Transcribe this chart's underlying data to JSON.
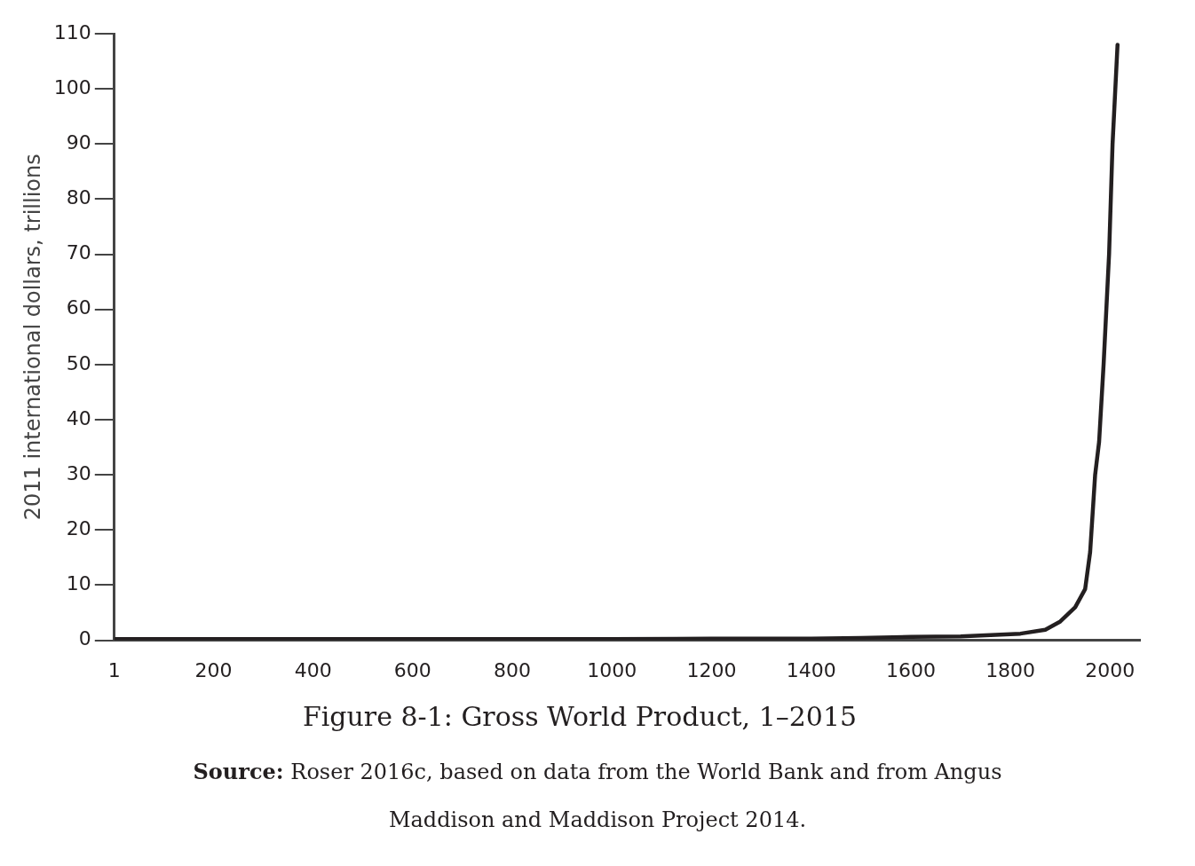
{
  "chart_data": {
    "type": "line",
    "title": "Figure 8-1: Gross World Product, 1–2015",
    "ylabel": "2011 international dollars, trillions",
    "annotations": [
      "Source: Roser 2016c, based on data from the World Bank and from Angus Maddison and Maddison Project 2014."
    ],
    "series": [
      {
        "color": "#231f20",
        "x": [
          1,
          500,
          1000,
          1200,
          1400,
          1500,
          1600,
          1700,
          1750,
          1820,
          1870,
          1900,
          1930,
          1950,
          1960,
          1970,
          1978,
          1987,
          1998,
          2005,
          2015
        ],
        "values": [
          0.2,
          0.2,
          0.2,
          0.3,
          0.3,
          0.4,
          0.6,
          0.7,
          0.9,
          1.2,
          1.9,
          3.4,
          6,
          9.3,
          16,
          30,
          36,
          50,
          70,
          90,
          108
        ]
      }
    ],
    "xlim": [
      1,
      2060
    ],
    "xticks": [
      1,
      200,
      400,
      600,
      800,
      1000,
      1200,
      1400,
      1600,
      1800,
      2000
    ],
    "ylim": [
      0,
      110
    ],
    "yticks": [
      0,
      10,
      20,
      30,
      40,
      50,
      60,
      70,
      80,
      90,
      100,
      110
    ],
    "grid": false,
    "legend": false,
    "marker": "none",
    "line_style": "solid"
  }
}
